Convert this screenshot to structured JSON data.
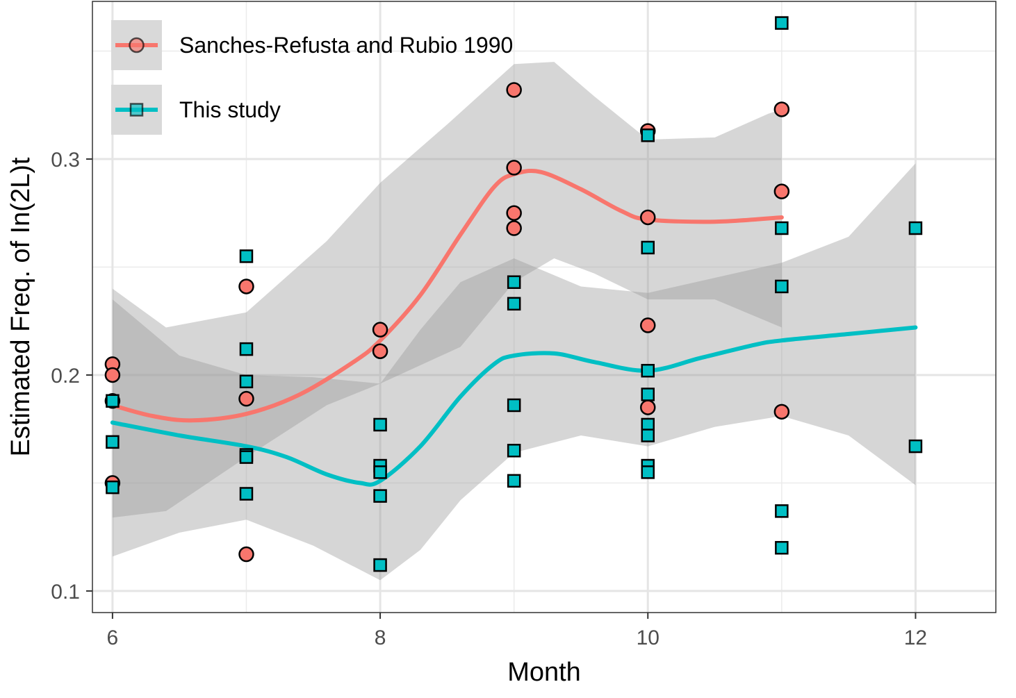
{
  "chart_data": {
    "type": "scatter",
    "xlabel": "Month",
    "ylabel": "Estimated Freq. of In(2L)t",
    "xlim": [
      5.85,
      12.6
    ],
    "ylim": [
      0.09,
      0.373
    ],
    "x_ticks": [
      6,
      8,
      10,
      12
    ],
    "x_tick_labels": [
      "6",
      "8",
      "10",
      "12"
    ],
    "y_ticks": [
      0.1,
      0.2,
      0.3
    ],
    "y_tick_labels": [
      "0.1",
      "0.2",
      "0.3"
    ],
    "grid": true,
    "legend_position": "top-left",
    "series": [
      {
        "name": "Sanches-Refusta and Rubio 1990",
        "marker": "circle",
        "color": "#F8766D",
        "points": [
          [
            6,
            0.205
          ],
          [
            6,
            0.2
          ],
          [
            6,
            0.188
          ],
          [
            6,
            0.15
          ],
          [
            7,
            0.241
          ],
          [
            7,
            0.189
          ],
          [
            7,
            0.117
          ],
          [
            8,
            0.221
          ],
          [
            8,
            0.211
          ],
          [
            9,
            0.332
          ],
          [
            9,
            0.296
          ],
          [
            9,
            0.275
          ],
          [
            9,
            0.268
          ],
          [
            10,
            0.313
          ],
          [
            10,
            0.273
          ],
          [
            10,
            0.223
          ],
          [
            10,
            0.185
          ],
          [
            11,
            0.323
          ],
          [
            11,
            0.285
          ],
          [
            11,
            0.183
          ]
        ],
        "smooth": [
          [
            6.0,
            0.186
          ],
          [
            6.3,
            0.181
          ],
          [
            6.6,
            0.179
          ],
          [
            7.0,
            0.182
          ],
          [
            7.4,
            0.191
          ],
          [
            7.8,
            0.206
          ],
          [
            8.0,
            0.216
          ],
          [
            8.3,
            0.237
          ],
          [
            8.6,
            0.265
          ],
          [
            8.85,
            0.287
          ],
          [
            9.0,
            0.293
          ],
          [
            9.2,
            0.294
          ],
          [
            9.5,
            0.286
          ],
          [
            9.8,
            0.276
          ],
          [
            10.0,
            0.272
          ],
          [
            10.5,
            0.271
          ],
          [
            11.0,
            0.273
          ]
        ],
        "band_upper": [
          [
            6.0,
            0.24
          ],
          [
            6.4,
            0.222
          ],
          [
            7.0,
            0.229
          ],
          [
            7.6,
            0.262
          ],
          [
            8.0,
            0.289
          ],
          [
            8.5,
            0.316
          ],
          [
            9.0,
            0.344
          ],
          [
            9.3,
            0.345
          ],
          [
            9.6,
            0.329
          ],
          [
            10.0,
            0.309
          ],
          [
            10.5,
            0.31
          ],
          [
            10.9,
            0.321
          ],
          [
            11.0,
            0.323
          ]
        ],
        "band_lower": [
          [
            11.0,
            0.222
          ],
          [
            10.5,
            0.235
          ],
          [
            10.0,
            0.235
          ],
          [
            9.6,
            0.247
          ],
          [
            9.3,
            0.254
          ],
          [
            9.0,
            0.243
          ],
          [
            8.6,
            0.213
          ],
          [
            8.0,
            0.196
          ],
          [
            7.6,
            0.186
          ],
          [
            7.0,
            0.162
          ],
          [
            6.4,
            0.137
          ],
          [
            6.0,
            0.134
          ]
        ]
      },
      {
        "name": "This study",
        "marker": "square",
        "color": "#00BFC4",
        "points": [
          [
            6,
            0.188
          ],
          [
            6,
            0.169
          ],
          [
            6,
            0.148
          ],
          [
            7,
            0.255
          ],
          [
            7,
            0.212
          ],
          [
            7,
            0.197
          ],
          [
            7,
            0.163
          ],
          [
            7,
            0.162
          ],
          [
            7,
            0.145
          ],
          [
            8,
            0.177
          ],
          [
            8,
            0.158
          ],
          [
            8,
            0.155
          ],
          [
            8,
            0.144
          ],
          [
            8,
            0.112
          ],
          [
            9,
            0.243
          ],
          [
            9,
            0.233
          ],
          [
            9,
            0.186
          ],
          [
            9,
            0.165
          ],
          [
            9,
            0.151
          ],
          [
            10,
            0.311
          ],
          [
            10,
            0.259
          ],
          [
            10,
            0.202
          ],
          [
            10,
            0.191
          ],
          [
            10,
            0.177
          ],
          [
            10,
            0.172
          ],
          [
            10,
            0.158
          ],
          [
            10,
            0.155
          ],
          [
            11,
            0.363
          ],
          [
            11,
            0.268
          ],
          [
            11,
            0.241
          ],
          [
            11,
            0.137
          ],
          [
            11,
            0.12
          ],
          [
            12,
            0.268
          ],
          [
            12,
            0.167
          ]
        ],
        "smooth": [
          [
            6.0,
            0.178
          ],
          [
            6.5,
            0.172
          ],
          [
            7.0,
            0.167
          ],
          [
            7.3,
            0.162
          ],
          [
            7.6,
            0.154
          ],
          [
            7.85,
            0.15
          ],
          [
            8.0,
            0.151
          ],
          [
            8.3,
            0.167
          ],
          [
            8.6,
            0.19
          ],
          [
            8.85,
            0.205
          ],
          [
            9.0,
            0.209
          ],
          [
            9.3,
            0.21
          ],
          [
            9.6,
            0.206
          ],
          [
            10.0,
            0.202
          ],
          [
            10.4,
            0.208
          ],
          [
            10.8,
            0.214
          ],
          [
            11.0,
            0.216
          ],
          [
            11.5,
            0.219
          ],
          [
            12.0,
            0.222
          ]
        ],
        "band_upper": [
          [
            6.0,
            0.235
          ],
          [
            6.5,
            0.209
          ],
          [
            7.0,
            0.2
          ],
          [
            7.5,
            0.199
          ],
          [
            8.0,
            0.196
          ],
          [
            8.3,
            0.221
          ],
          [
            8.6,
            0.243
          ],
          [
            9.0,
            0.254
          ],
          [
            9.5,
            0.241
          ],
          [
            10.0,
            0.238
          ],
          [
            10.5,
            0.245
          ],
          [
            11.0,
            0.252
          ],
          [
            11.5,
            0.264
          ],
          [
            12.0,
            0.298
          ]
        ],
        "band_lower": [
          [
            12.0,
            0.149
          ],
          [
            11.5,
            0.172
          ],
          [
            11.0,
            0.181
          ],
          [
            10.5,
            0.176
          ],
          [
            10.0,
            0.167
          ],
          [
            9.5,
            0.172
          ],
          [
            9.0,
            0.164
          ],
          [
            8.6,
            0.142
          ],
          [
            8.3,
            0.119
          ],
          [
            8.0,
            0.105
          ],
          [
            7.5,
            0.121
          ],
          [
            7.0,
            0.133
          ],
          [
            6.5,
            0.127
          ],
          [
            6.0,
            0.116
          ]
        ]
      }
    ]
  }
}
